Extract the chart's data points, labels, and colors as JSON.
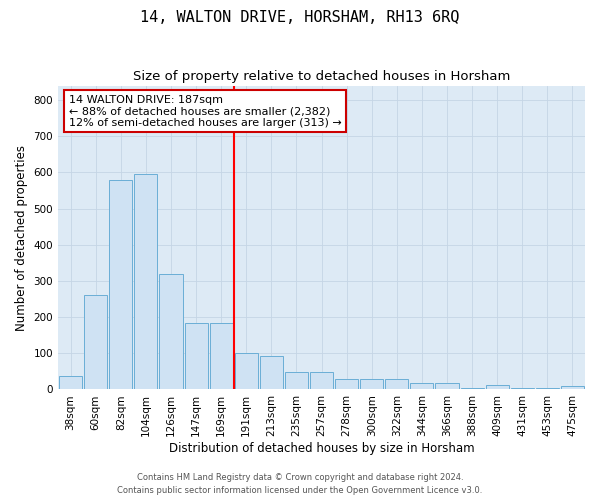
{
  "title": "14, WALTON DRIVE, HORSHAM, RH13 6RQ",
  "subtitle": "Size of property relative to detached houses in Horsham",
  "xlabel": "Distribution of detached houses by size in Horsham",
  "ylabel": "Number of detached properties",
  "footnote1": "Contains HM Land Registry data © Crown copyright and database right 2024.",
  "footnote2": "Contains public sector information licensed under the Open Government Licence v3.0.",
  "categories": [
    "38sqm",
    "60sqm",
    "82sqm",
    "104sqm",
    "126sqm",
    "147sqm",
    "169sqm",
    "191sqm",
    "213sqm",
    "235sqm",
    "257sqm",
    "278sqm",
    "300sqm",
    "322sqm",
    "344sqm",
    "366sqm",
    "388sqm",
    "409sqm",
    "431sqm",
    "453sqm",
    "475sqm"
  ],
  "values": [
    38,
    260,
    580,
    595,
    320,
    185,
    185,
    100,
    92,
    48,
    48,
    28,
    28,
    28,
    18,
    18,
    5,
    13,
    5,
    5,
    9
  ],
  "bar_color": "#cfe2f3",
  "bar_edge_color": "#6aaed6",
  "grid_color": "#c5d5e5",
  "background_color": "#ddeaf5",
  "redline_x": 7,
  "annotation_text": "14 WALTON DRIVE: 187sqm\n← 88% of detached houses are smaller (2,382)\n12% of semi-detached houses are larger (313) →",
  "annotation_box_facecolor": "#ffffff",
  "annotation_box_edgecolor": "#cc0000",
  "ylim": [
    0,
    840
  ],
  "yticks": [
    0,
    100,
    200,
    300,
    400,
    500,
    600,
    700,
    800
  ],
  "title_fontsize": 11,
  "subtitle_fontsize": 9.5,
  "axis_label_fontsize": 8.5,
  "tick_fontsize": 7.5,
  "annotation_fontsize": 8,
  "footnote_fontsize": 6
}
